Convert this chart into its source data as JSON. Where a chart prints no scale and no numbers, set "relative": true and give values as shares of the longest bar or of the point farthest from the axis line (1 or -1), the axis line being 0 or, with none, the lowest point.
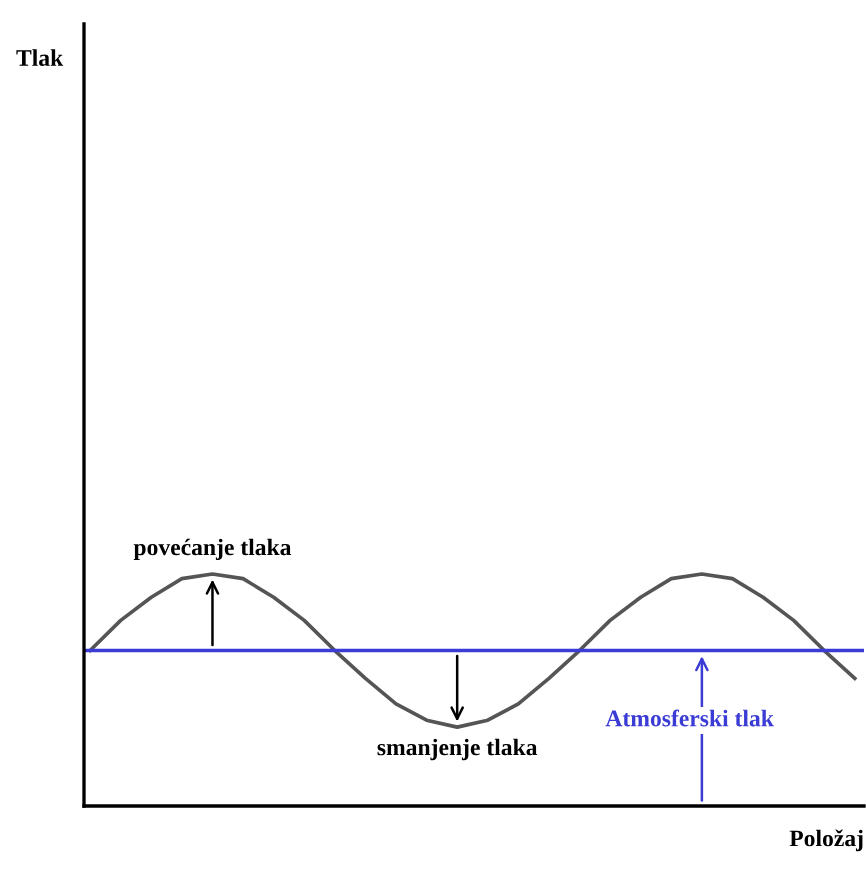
{
  "chart_data": {
    "type": "line",
    "relative": true,
    "xlabel": "Položaj",
    "categories": [
      null,
      null,
      null,
      null,
      null,
      null,
      null,
      null,
      null,
      null,
      null,
      null,
      null,
      null,
      null,
      null,
      null,
      null,
      null,
      null,
      null,
      null,
      null,
      null,
      null,
      null
    ],
    "series": [
      {
        "color": "#555555",
        "values": [
          0.67,
          0.8,
          0.9,
          0.98,
          1.0,
          0.98,
          0.9,
          0.8,
          0.67,
          0.55,
          0.44,
          0.37,
          0.34,
          0.37,
          0.44,
          0.55,
          0.67,
          0.8,
          0.9,
          0.98,
          1.0,
          0.98,
          0.9,
          0.8,
          0.67,
          0.55
        ]
      }
    ],
    "ref_lines": [
      {
        "axis": "y",
        "value": 0.67,
        "label": "Atmosferski tlak",
        "color": "#3b3bd6"
      }
    ],
    "annotations": [
      "povećanje tlaka",
      "smanjenje tlaka",
      "Tlak"
    ],
    "legend": false,
    "marker": "none",
    "line_style": "solid"
  }
}
